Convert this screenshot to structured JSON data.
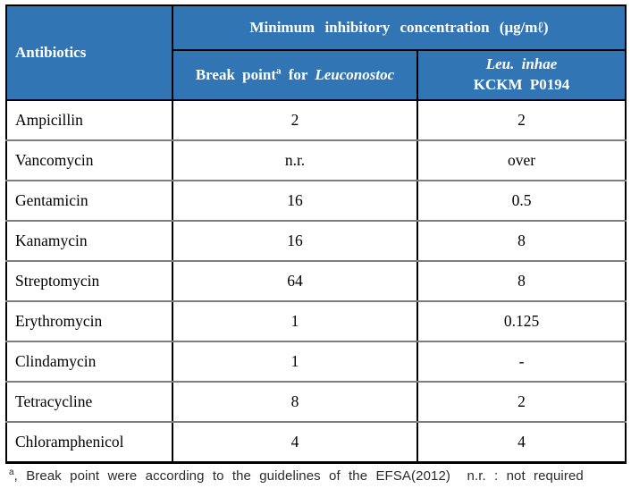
{
  "table": {
    "header": {
      "antibiotics": "Antibiotics",
      "mic_title": "Minimum inhibitory concentration (μg/mℓ)",
      "col2": {
        "prefix": "Break point",
        "sup": "a",
        "mid": " for ",
        "italic": "Leuconostoc"
      },
      "col3": {
        "line1": "Leu. inhae",
        "line2": "KCKM P0194"
      }
    },
    "rows": [
      {
        "name": "Ampicillin",
        "breakpoint": "2",
        "inhae": "2"
      },
      {
        "name": "Vancomycin",
        "breakpoint": "n.r.",
        "inhae": "over"
      },
      {
        "name": "Gentamicin",
        "breakpoint": "16",
        "inhae": "0.5"
      },
      {
        "name": "Kanamycin",
        "breakpoint": "16",
        "inhae": "8"
      },
      {
        "name": "Streptomycin",
        "breakpoint": "64",
        "inhae": "8"
      },
      {
        "name": "Erythromycin",
        "breakpoint": "1",
        "inhae": "0.125"
      },
      {
        "name": "Clindamycin",
        "breakpoint": "1",
        "inhae": "-"
      },
      {
        "name": "Tetracycline",
        "breakpoint": "8",
        "inhae": "2"
      },
      {
        "name": "Chloramphenicol",
        "breakpoint": "4",
        "inhae": "4"
      }
    ]
  },
  "footnote": {
    "sup": "a",
    "text": ", Break point were according to the guidelines of the EFSA(2012)  n.r. : not required"
  },
  "colors": {
    "header_bg": "#3175B5",
    "header_text": "#FFFFFF",
    "row_divider": "#7E7E7E",
    "border": "#000000"
  }
}
